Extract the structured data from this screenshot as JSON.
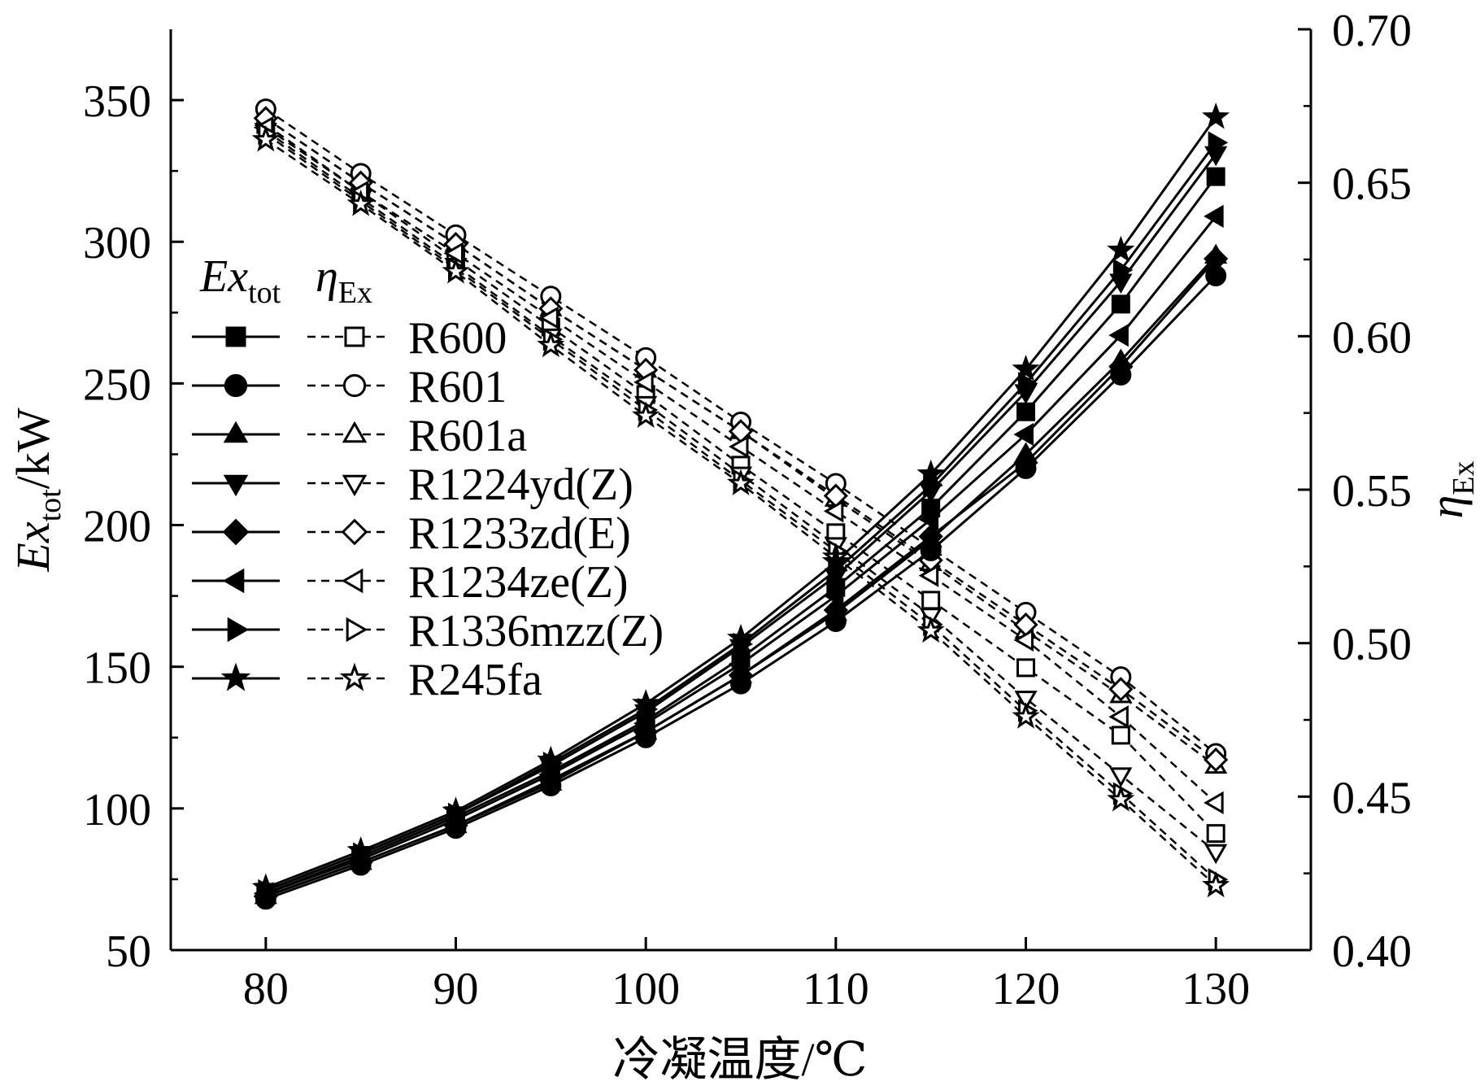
{
  "chart_data": {
    "type": "line",
    "xlabel": "冷凝温度/℃",
    "ylabel_left": {
      "main": "Ex",
      "sub": "tot",
      "unit": "/kW"
    },
    "ylabel_right": {
      "main": "η",
      "sub": "Ex"
    },
    "xlim": [
      75,
      135
    ],
    "ylim_left": [
      50,
      375
    ],
    "ylim_right": [
      0.4,
      0.7
    ],
    "x_ticks": [
      80,
      90,
      100,
      110,
      120,
      130
    ],
    "x_tick_labels": [
      "80",
      "90",
      "100",
      "110",
      "120",
      "130"
    ],
    "y_left_ticks": [
      50,
      100,
      150,
      200,
      250,
      300,
      350
    ],
    "y_left_tick_labels": [
      "50",
      "100",
      "150",
      "200",
      "250",
      "300",
      "350"
    ],
    "y_right_ticks": [
      0.4,
      0.45,
      0.5,
      0.55,
      0.6,
      0.65,
      0.7
    ],
    "y_right_tick_labels": [
      "0.40",
      "0.45",
      "0.50",
      "0.55",
      "0.60",
      "0.65",
      "0.70"
    ],
    "legend": {
      "placement": "center-left",
      "header_ex": {
        "main": "Ex",
        "sub": "tot"
      },
      "header_eta": {
        "main": "η",
        "sub": "Ex"
      }
    },
    "x": [
      80,
      85,
      90,
      95,
      100,
      105,
      110,
      115,
      120,
      125,
      130
    ],
    "series": [
      {
        "name": "R600",
        "marker": "square",
        "ex_tot": [
          70,
          83,
          97,
          113,
          131,
          153,
          178,
          206,
          240,
          278,
          323
        ],
        "eta_ex": [
          0.669,
          0.647,
          0.625,
          0.603,
          0.581,
          0.558,
          0.536,
          0.514,
          0.492,
          0.47,
          0.438
        ]
      },
      {
        "name": "R601",
        "marker": "circle",
        "ex_tot": [
          68,
          80,
          93,
          108,
          125,
          144,
          166,
          191,
          220,
          253,
          288
        ],
        "eta_ex": [
          0.674,
          0.653,
          0.633,
          0.613,
          0.593,
          0.572,
          0.552,
          0.531,
          0.51,
          0.489,
          0.464
        ]
      },
      {
        "name": "R601a",
        "marker": "triangle-up",
        "ex_tot": [
          69,
          81,
          94,
          109,
          127,
          147,
          169,
          195,
          225,
          258,
          295
        ],
        "eta_ex": [
          0.671,
          0.65,
          0.63,
          0.609,
          0.589,
          0.569,
          0.547,
          0.526,
          0.504,
          0.483,
          0.46
        ]
      },
      {
        "name": "R1224yd(Z)",
        "marker": "triangle-down",
        "ex_tot": [
          71,
          84,
          98,
          115,
          134,
          157,
          182,
          212,
          247,
          286,
          331
        ],
        "eta_ex": [
          0.667,
          0.645,
          0.623,
          0.6,
          0.578,
          0.555,
          0.532,
          0.509,
          0.482,
          0.457,
          0.432
        ]
      },
      {
        "name": "R1233zd(E)",
        "marker": "diamond",
        "ex_tot": [
          69,
          81,
          94,
          110,
          127,
          147,
          170,
          196,
          222,
          256,
          294
        ],
        "eta_ex": [
          0.671,
          0.65,
          0.63,
          0.609,
          0.589,
          0.569,
          0.548,
          0.527,
          0.506,
          0.485,
          0.462
        ]
      },
      {
        "name": "R1234ze(Z)",
        "marker": "triangle-left",
        "ex_tot": [
          70,
          82,
          96,
          112,
          130,
          151,
          175,
          202,
          232,
          267,
          309
        ],
        "eta_ex": [
          0.668,
          0.647,
          0.627,
          0.606,
          0.585,
          0.564,
          0.543,
          0.522,
          0.501,
          0.476,
          0.448
        ]
      },
      {
        "name": "R1336mzz(Z)",
        "marker": "triangle-right",
        "ex_tot": [
          71,
          84,
          98,
          116,
          135,
          158,
          184,
          214,
          250,
          290,
          335
        ],
        "eta_ex": [
          0.666,
          0.644,
          0.622,
          0.599,
          0.576,
          0.553,
          0.53,
          0.506,
          0.478,
          0.451,
          0.423
        ]
      },
      {
        "name": "R245fa",
        "marker": "star",
        "ex_tot": [
          72,
          85,
          99,
          117,
          137,
          160,
          187,
          218,
          255,
          297,
          344
        ],
        "eta_ex": [
          0.664,
          0.643,
          0.621,
          0.597,
          0.574,
          0.552,
          0.528,
          0.504,
          0.476,
          0.449,
          0.421
        ]
      }
    ]
  }
}
